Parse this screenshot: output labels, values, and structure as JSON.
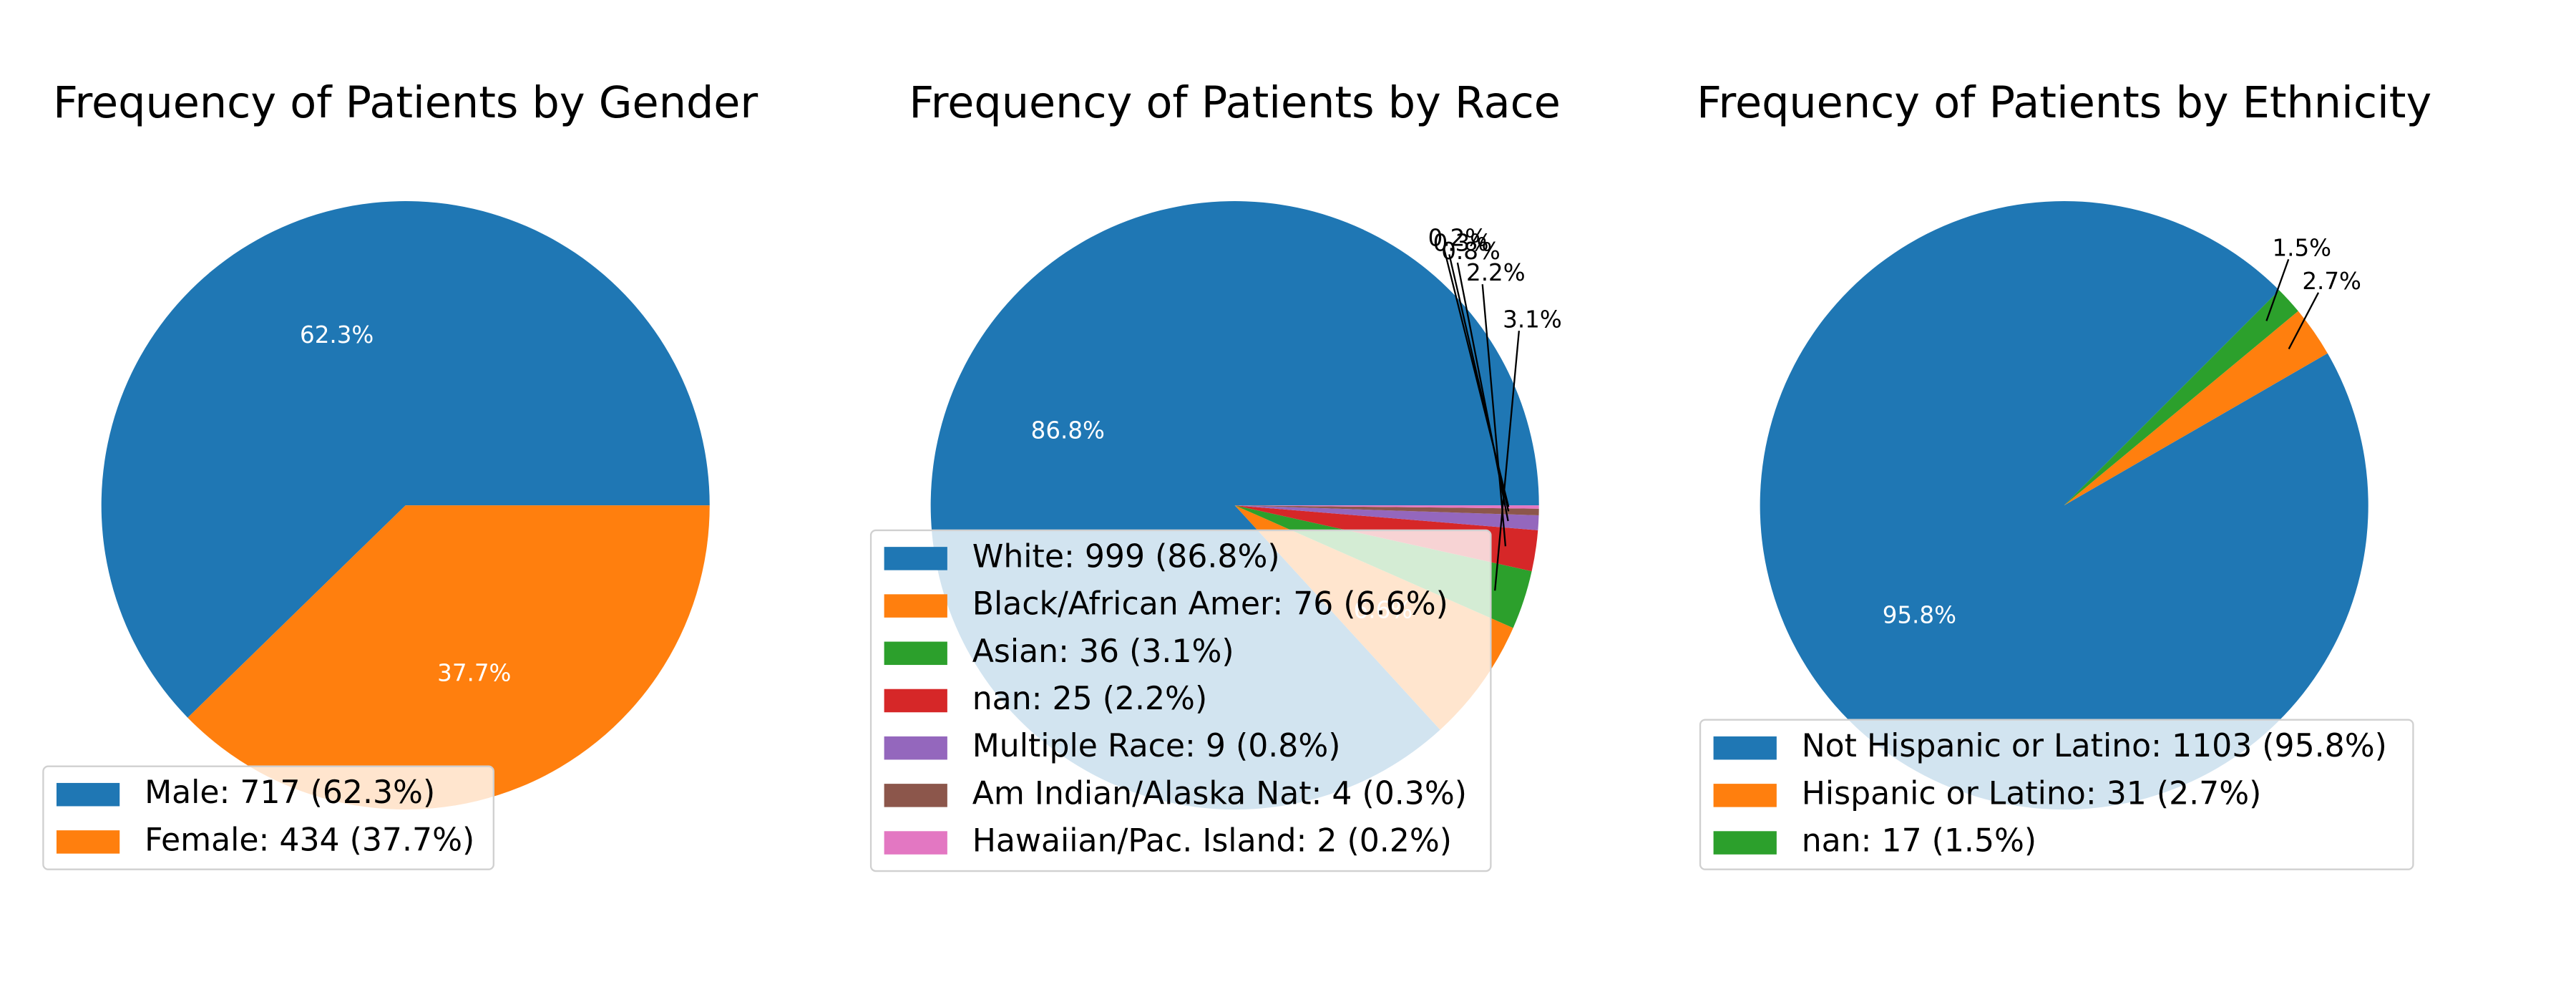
{
  "chart_data": [
    {
      "type": "pie",
      "title": "Frequency of Patients by Gender",
      "start_angle_deg": 0,
      "slices": [
        {
          "label": "Male",
          "count": 717,
          "pct": 62.3,
          "color": "#1f77b4",
          "text": "62.3%",
          "legend": "Male: 717 (62.3%)"
        },
        {
          "label": "Female",
          "count": 434,
          "pct": 37.7,
          "color": "#ff7f0e",
          "text": "37.7%",
          "legend": "Female: 434 (37.7%)"
        }
      ],
      "legend_position": "lower-left"
    },
    {
      "type": "pie",
      "title": "Frequency of Patients by Race",
      "start_angle_deg": 0,
      "slices": [
        {
          "label": "White",
          "count": 999,
          "pct": 86.8,
          "color": "#1f77b4",
          "text": "86.8%",
          "legend": "White: 999 (86.8%)"
        },
        {
          "label": "Black/African Amer",
          "count": 76,
          "pct": 6.6,
          "color": "#ff7f0e",
          "text": "6.6%",
          "legend": "Black/African Amer: 76 (6.6%)"
        },
        {
          "label": "Asian",
          "count": 36,
          "pct": 3.1,
          "color": "#2ca02c",
          "text": "3.1%",
          "legend": "Asian: 36 (3.1%)"
        },
        {
          "label": "nan",
          "count": 25,
          "pct": 2.2,
          "color": "#d62728",
          "text": "2.2%",
          "legend": "nan: 25 (2.2%)"
        },
        {
          "label": "Multiple Race",
          "count": 9,
          "pct": 0.8,
          "color": "#9467bd",
          "text": "0.8%",
          "legend": "Multiple Race: 9 (0.8%)"
        },
        {
          "label": "Am Indian/Alaska Nat",
          "count": 4,
          "pct": 0.3,
          "color": "#8c564b",
          "text": "0.3%",
          "legend": "Am Indian/Alaska Nat: 4 (0.3%)"
        },
        {
          "label": "Hawaiian/Pac. Island",
          "count": 2,
          "pct": 0.2,
          "color": "#e377c2",
          "text": "0.2%",
          "legend": "Hawaiian/Pac. Island: 2 (0.2%)"
        }
      ],
      "legend_position": "lower-left"
    },
    {
      "type": "pie",
      "title": "Frequency of Patients by Ethnicity",
      "start_angle_deg": 45,
      "slices": [
        {
          "label": "Not Hispanic or Latino",
          "count": 1103,
          "pct": 95.8,
          "color": "#1f77b4",
          "text": "95.8%",
          "legend": "Not Hispanic or Latino: 1103 (95.8%)"
        },
        {
          "label": "Hispanic or Latino",
          "count": 31,
          "pct": 2.7,
          "color": "#ff7f0e",
          "text": "2.7%",
          "legend": "Hispanic or Latino: 31 (2.7%)"
        },
        {
          "label": "nan",
          "count": 17,
          "pct": 1.5,
          "color": "#2ca02c",
          "text": "1.5%",
          "legend": "nan: 17 (1.5%)"
        }
      ],
      "legend_position": "lower-left"
    }
  ]
}
